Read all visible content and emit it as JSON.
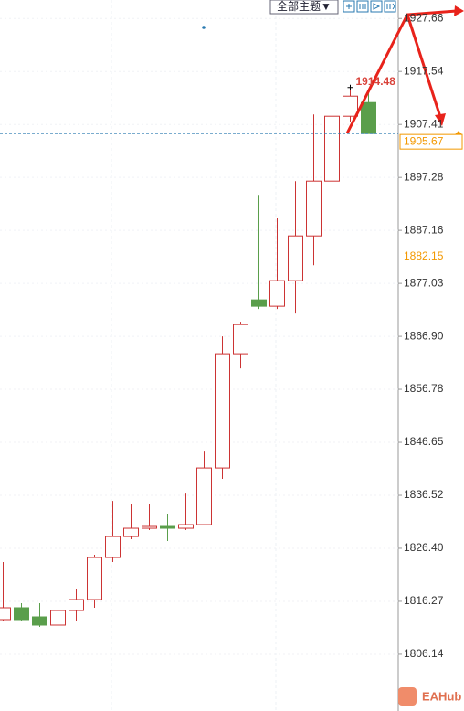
{
  "toolbar": {
    "theme_button": "全部主题▼"
  },
  "watermark": "EAHub",
  "chart_data": {
    "type": "candlestick",
    "up_color": "#cc3333",
    "down_color": "#5a9e4b",
    "open": [
      1812.77,
      1815.04,
      1813.29,
      1811.72,
      1814.51,
      1816.61,
      1824.64,
      1828.65,
      1830.23,
      1830.58,
      1830.23,
      1830.93,
      1841.75,
      1863.58,
      1873.88,
      1872.66,
      1877.55,
      1886.1,
      1896.58,
      1908.98,
      1911.6
    ],
    "high": [
      1823.77,
      1815.91,
      1815.91,
      1815.56,
      1818.53,
      1825.16,
      1835.46,
      1834.77,
      1834.77,
      1833.02,
      1836.86,
      1844.89,
      1866.89,
      1869.69,
      1893.96,
      1889.59,
      1896.58,
      1909.33,
      1912.82,
      1914.48,
      1913.69
    ],
    "low": [
      1812.42,
      1812.42,
      1811.37,
      1811.37,
      1812.42,
      1815.04,
      1823.77,
      1828.13,
      1829.88,
      1827.78,
      1829.88,
      1830.75,
      1839.66,
      1860.78,
      1872.13,
      1872.13,
      1871.26,
      1880.51,
      1896.23,
      1907.93,
      1905.67
    ],
    "close": [
      1815.04,
      1812.77,
      1811.72,
      1814.51,
      1816.61,
      1824.64,
      1828.65,
      1830.23,
      1830.58,
      1830.23,
      1830.93,
      1841.75,
      1863.58,
      1869.16,
      1872.66,
      1877.55,
      1886.1,
      1896.58,
      1908.98,
      1912.82,
      1905.67
    ],
    "marker_price": 1882.15,
    "marker_color": "#f39800",
    "ylim": [
      1795.3,
      1931.2
    ],
    "yticks": [
      1806.14,
      1816.27,
      {
        "value": 1826.4,
        "label": "1826.40"
      },
      1836.52,
      1846.65,
      1856.78,
      {
        "value": 1866.9,
        "label": "1866.90"
      },
      1877.03,
      1887.16,
      1897.28,
      1907.41,
      1917.54,
      1927.66
    ],
    "grid": true
  }
}
